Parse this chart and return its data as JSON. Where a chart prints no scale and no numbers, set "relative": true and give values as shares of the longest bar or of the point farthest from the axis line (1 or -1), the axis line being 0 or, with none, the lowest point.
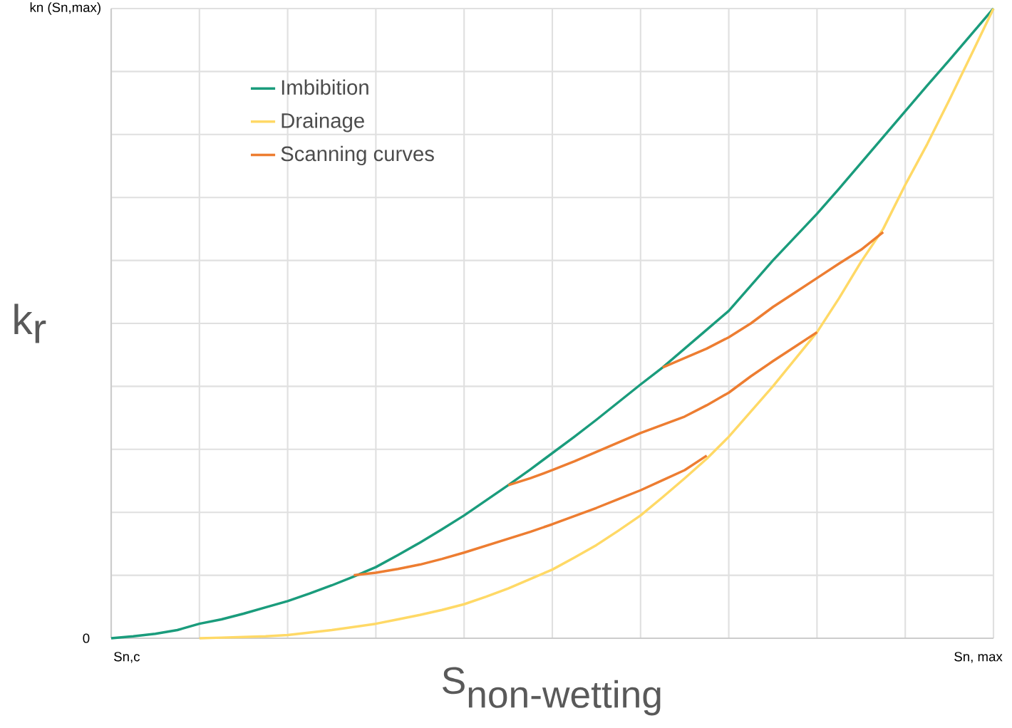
{
  "chart_data": {
    "type": "line",
    "relative": true,
    "xlabel": "\\textrm{S}_{\\textrm{non-wetting}}",
    "ylabel": "\\textrm{k}_{\\textrm{r}}",
    "annotations": [
      "kn (Sn,max)",
      "0",
      "Sn,c",
      "Sn, max"
    ],
    "grid": true,
    "legend": "top left",
    "marker": "none",
    "line_style": "solid",
    "categories": [
      null,
      null,
      null,
      null,
      null,
      null,
      null,
      null,
      null,
      null,
      null,
      null,
      null,
      null,
      null,
      null,
      null,
      null,
      null,
      null,
      null,
      null,
      null,
      null,
      null,
      null,
      null,
      null,
      null,
      null,
      null,
      null,
      null,
      null,
      null,
      null,
      null,
      null,
      null,
      null,
      null
    ],
    "series": [
      {
        "name": "Imbibition",
        "color": "#1a9c7c",
        "values": [
          0,
          0.003,
          0.007,
          0.013,
          0.023,
          0.03,
          0.039,
          0.049,
          0.059,
          0.071,
          0.084,
          0.098,
          0.113,
          0.132,
          0.152,
          0.173,
          0.195,
          0.219,
          0.243,
          0.268,
          0.294,
          0.32,
          0.347,
          0.375,
          0.403,
          0.43,
          0.46,
          0.49,
          0.52,
          0.56,
          0.6,
          0.637,
          0.674,
          0.714,
          0.755,
          0.796,
          0.837,
          0.878,
          0.918,
          0.959,
          1
        ]
      },
      {
        "name": "Drainage",
        "color": "#ffd966",
        "values": [
          null,
          null,
          null,
          null,
          0,
          0.001,
          0.002,
          0.003,
          0.005,
          0.009,
          0.013,
          0.018,
          0.023,
          0.03,
          0.037,
          0.045,
          0.054,
          0.066,
          0.079,
          0.094,
          0.109,
          0.128,
          0.148,
          0.171,
          0.195,
          0.224,
          0.254,
          0.285,
          0.32,
          0.36,
          0.4,
          0.443,
          0.486,
          0.54,
          0.598,
          0.65,
          0.72,
          0.785,
          0.855,
          0.927,
          1
        ]
      },
      {
        "name": "Scanning curves",
        "color": "#ed7d31",
        "values": [
          null,
          null,
          null,
          null,
          null,
          null,
          null,
          null,
          null,
          null,
          null,
          0.1,
          0.104,
          0.11,
          0.117,
          0.126,
          0.136,
          0.147,
          0.158,
          0.169,
          0.181,
          0.194,
          0.207,
          0.221,
          0.235,
          0.251,
          0.267,
          0.29,
          null,
          null,
          null,
          null,
          null,
          null,
          null,
          null,
          null,
          null,
          null,
          null,
          null
        ]
      },
      {
        "color": "#ed7d31",
        "values": [
          null,
          null,
          null,
          null,
          null,
          null,
          null,
          null,
          null,
          null,
          null,
          null,
          null,
          null,
          null,
          null,
          null,
          null,
          0.243,
          0.254,
          0.267,
          0.281,
          0.296,
          0.311,
          0.326,
          0.339,
          0.352,
          0.37,
          0.39,
          0.416,
          0.44,
          0.463,
          0.486,
          null,
          null,
          null,
          null,
          null,
          null,
          null,
          null
        ]
      },
      {
        "color": "#ed7d31",
        "values": [
          null,
          null,
          null,
          null,
          null,
          null,
          null,
          null,
          null,
          null,
          null,
          null,
          null,
          null,
          null,
          null,
          null,
          null,
          null,
          null,
          null,
          null,
          null,
          null,
          null,
          0.43,
          0.445,
          0.46,
          0.478,
          0.5,
          0.526,
          0.549,
          0.572,
          0.595,
          0.617,
          0.645,
          null,
          null,
          null,
          null,
          null
        ]
      }
    ]
  }
}
